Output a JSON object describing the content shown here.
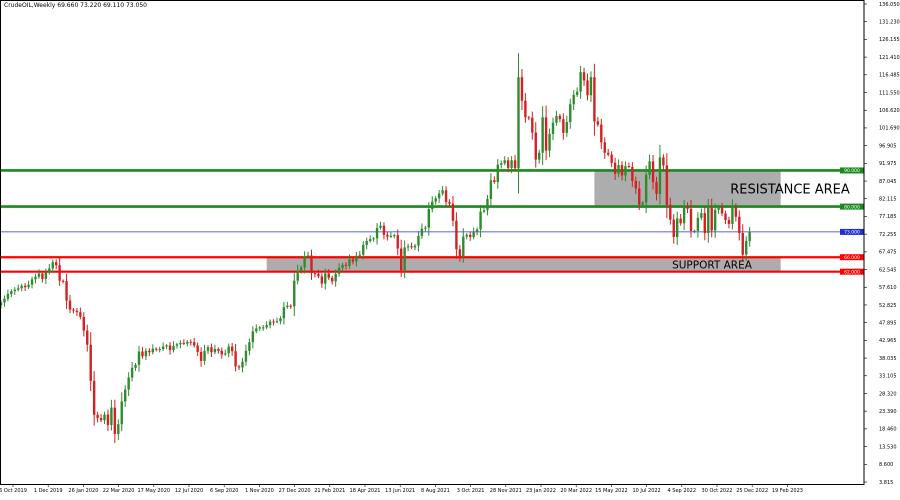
{
  "header": {
    "symbol_line": "CrudeOIL,Weekly  69.660 73.220 69.110 73.050"
  },
  "colors": {
    "bull": "#2e8b2e",
    "bear": "#d42020",
    "resistance_line": "#1a8a1a",
    "support_line": "#ff0000",
    "current_line": "#1f2fd1",
    "zone_fill": "#a9a9a9"
  },
  "chart_data": {
    "type": "candlestick",
    "title": "CrudeOIL,Weekly",
    "ylim": [
      3.815,
      136.05
    ],
    "grid": false,
    "y_ticks": [
      "136.050",
      "131.230",
      "126.155",
      "121.410",
      "116.485",
      "111.550",
      "106.620",
      "101.690",
      "96.905",
      "91.975",
      "87.045",
      "82.115",
      "77.185",
      "72.255",
      "67.475",
      "62.545",
      "57.610",
      "52.825",
      "47.895",
      "42.965",
      "38.035",
      "33.105",
      "28.320",
      "23.390",
      "18.460",
      "13.530",
      "8.600",
      "3.815"
    ],
    "x_labels": [
      "6 Oct 2019",
      "1 Dec 2019",
      "26 Jan 2020",
      "22 Mar 2020",
      "17 May 2020",
      "12 Jul 2020",
      "6 Sep 2020",
      "1 Nov 2020",
      "27 Dec 2020",
      "21 Feb 2021",
      "18 Apr 2021",
      "13 Jun 2021",
      "8 Aug 2021",
      "3 Oct 2021",
      "28 Nov 2021",
      "23 Jan 2022",
      "20 Mar 2022",
      "15 May 2022",
      "10 Jul 2022",
      "4 Sep 2022",
      "30 Oct 2022",
      "25 Dec 2022",
      "19 Feb 2023"
    ],
    "levels": [
      {
        "name": "resistance-top",
        "value": 90.0,
        "label": "90.000"
      },
      {
        "name": "resistance-bottom",
        "value": 80.0,
        "label": "80.000"
      },
      {
        "name": "current",
        "value": 73.0,
        "label": "73.000"
      },
      {
        "name": "support-top",
        "value": 66.0,
        "label": "66.000"
      },
      {
        "name": "support-bottom",
        "value": 62.0,
        "label": "62.000"
      }
    ],
    "zones": [
      {
        "label": "RESISTANCE AREA",
        "from": 80.0,
        "to": 90.0,
        "start_week": 172,
        "end_week": 226
      },
      {
        "label": "SUPPORT AREA",
        "from": 62.0,
        "to": 66.0,
        "start_week": 77,
        "end_week": 226
      }
    ],
    "weekly_closes": [
      53.5,
      54.5,
      55.8,
      56.6,
      57.0,
      57.4,
      58.1,
      57.7,
      58.4,
      59.9,
      60.6,
      61.5,
      60.0,
      61.8,
      62.9,
      64.6,
      63.8,
      59.5,
      59.4,
      54.0,
      51.5,
      51.2,
      50.8,
      49.5,
      45.7,
      41.8,
      31.8,
      22.4,
      21.5,
      20.9,
      22.5,
      19.6,
      24.4,
      17.1,
      19.8,
      26.1,
      29.4,
      32.7,
      35.4,
      36.2,
      39.9,
      38.6,
      40.1,
      39.7,
      40.7,
      40.6,
      40.6,
      41.3,
      41.6,
      40.3,
      41.5,
      41.9,
      42.3,
      42.1,
      42.6,
      42.5,
      41.6,
      39.8,
      37.3,
      40.1,
      41.1,
      39.7,
      40.6,
      40.1,
      39.1,
      39.4,
      41.3,
      40.0,
      35.8,
      35.5,
      37.1,
      40.1,
      42.5,
      45.5,
      46.3,
      46.6,
      46.6,
      47.2,
      48.2,
      48.1,
      48.3,
      49.1,
      52.2,
      52.6,
      52.4,
      59.5,
      62.3,
      63.2,
      66.2,
      66.5,
      61.6,
      61.4,
      60.7,
      58.7,
      61.5,
      60.3,
      59.3,
      61.4,
      63.0,
      63.9,
      63.6,
      65.4,
      64.8,
      66.4,
      66.7,
      69.4,
      70.5,
      71.0,
      71.2,
      74.1,
      74.7,
      72.2,
      71.7,
      71.9,
      72.1,
      68.4,
      62.4,
      68.7,
      69.0,
      68.7,
      69.2,
      71.9,
      73.9,
      74.2,
      79.3,
      81.4,
      82.3,
      83.6,
      84.5,
      81.3,
      80.8,
      76.1,
      68.2,
      66.2,
      71.7,
      72.2,
      71.6,
      72.9,
      73.7,
      78.6,
      79.0,
      82.1,
      87.3,
      86.8,
      91.6,
      92.0,
      92.8,
      90.7,
      92.8,
      90.6,
      115.8,
      109.3,
      104.7,
      104.6,
      100.5,
      93.0,
      94.9,
      104.7,
      95.5,
      100.1,
      103.2,
      105.1,
      104.2,
      100.4,
      103.4,
      108.3,
      110.9,
      111.8,
      117.2,
      114.9,
      110.8,
      115.8,
      103.6,
      102.7,
      97.8,
      94.9,
      94.4,
      92.1,
      89.1,
      91.5,
      88.6,
      91.2,
      91.0,
      87.1,
      85.0,
      80.5,
      81.1,
      88.8,
      92.5,
      86.8,
      83.5,
      93.6,
      91.4,
      80.5,
      76.4,
      71.6,
      76.7,
      75.4,
      80.3,
      79.4,
      73.3,
      73.3,
      76.9,
      78.2,
      72.7,
      79.7,
      73.4,
      79.1,
      79.7,
      78.1,
      76.3,
      75.2,
      79.9,
      77.2,
      72.7,
      66.7,
      70.5,
      73.05
    ]
  }
}
